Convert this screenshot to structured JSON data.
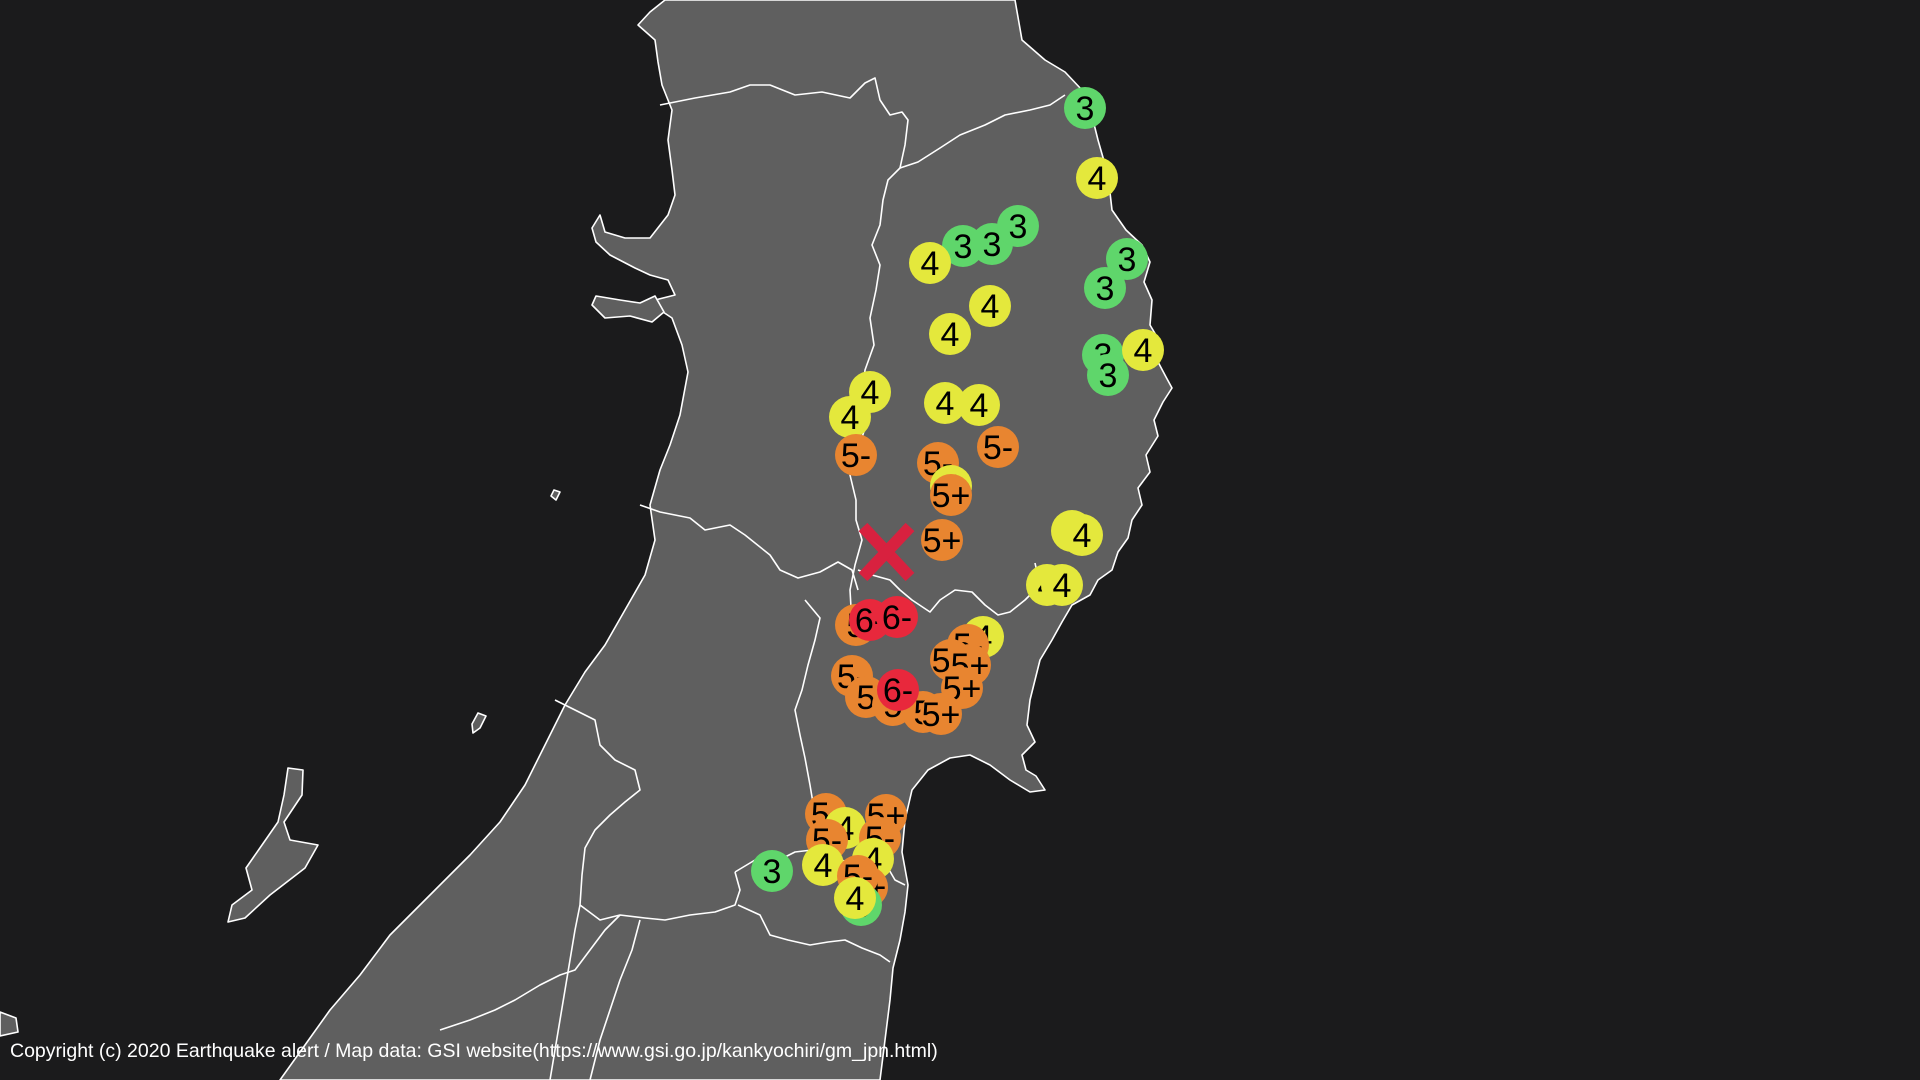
{
  "map": {
    "region": "Tohoku",
    "epicenter_marker": "x-mark",
    "colors": {
      "background": "#1b1b1c",
      "land": "#5f5f5f",
      "boundary": "#ffffff",
      "epicenter": "#d8213f",
      "intensity_3": "#5fd66b",
      "intensity_4": "#e4e83c",
      "intensity_5_minus": "#e88530",
      "intensity_5_plus": "#e88530",
      "intensity_6_minus": "#e8283c"
    },
    "intensity_markers": [
      {
        "label": "3"
      },
      {
        "label": "4"
      },
      {
        "label": "3"
      },
      {
        "label": "3"
      },
      {
        "label": "3"
      },
      {
        "label": "4"
      },
      {
        "label": "3"
      },
      {
        "label": "3"
      },
      {
        "label": "4"
      },
      {
        "label": "4"
      },
      {
        "label": "3"
      },
      {
        "label": "3"
      },
      {
        "label": "4"
      },
      {
        "label": "4"
      },
      {
        "label": "4"
      },
      {
        "label": "4"
      },
      {
        "label": "4"
      },
      {
        "label": "5-"
      },
      {
        "label": "5-"
      },
      {
        "label": "5-"
      },
      {
        "label": "4"
      },
      {
        "label": "5+"
      },
      {
        "label": "5+"
      },
      {
        "label": "4"
      },
      {
        "label": "4"
      },
      {
        "label": "4"
      },
      {
        "label": "4"
      },
      {
        "label": "5"
      },
      {
        "label": "6-"
      },
      {
        "label": "6-"
      },
      {
        "label": "4"
      },
      {
        "label": "5-"
      },
      {
        "label": "5+"
      },
      {
        "label": "5+"
      },
      {
        "label": "5+"
      },
      {
        "label": "5-"
      },
      {
        "label": "5"
      },
      {
        "label": "5"
      },
      {
        "label": "5"
      },
      {
        "label": "6-"
      },
      {
        "label": "5+"
      },
      {
        "label": "5-"
      },
      {
        "label": "4"
      },
      {
        "label": "5+"
      },
      {
        "label": "5-"
      },
      {
        "label": "5-"
      },
      {
        "label": "4"
      },
      {
        "label": "5+"
      },
      {
        "label": "3"
      },
      {
        "label": "4"
      },
      {
        "label": "5-"
      },
      {
        "label": "3"
      },
      {
        "label": "4"
      }
    ]
  },
  "footer": {
    "copyright": "Copyright (c) 2020 Earthquake alert / Map data: GSI website(https://www.gsi.go.jp/kankyochiri/gm_jpn.html)"
  }
}
